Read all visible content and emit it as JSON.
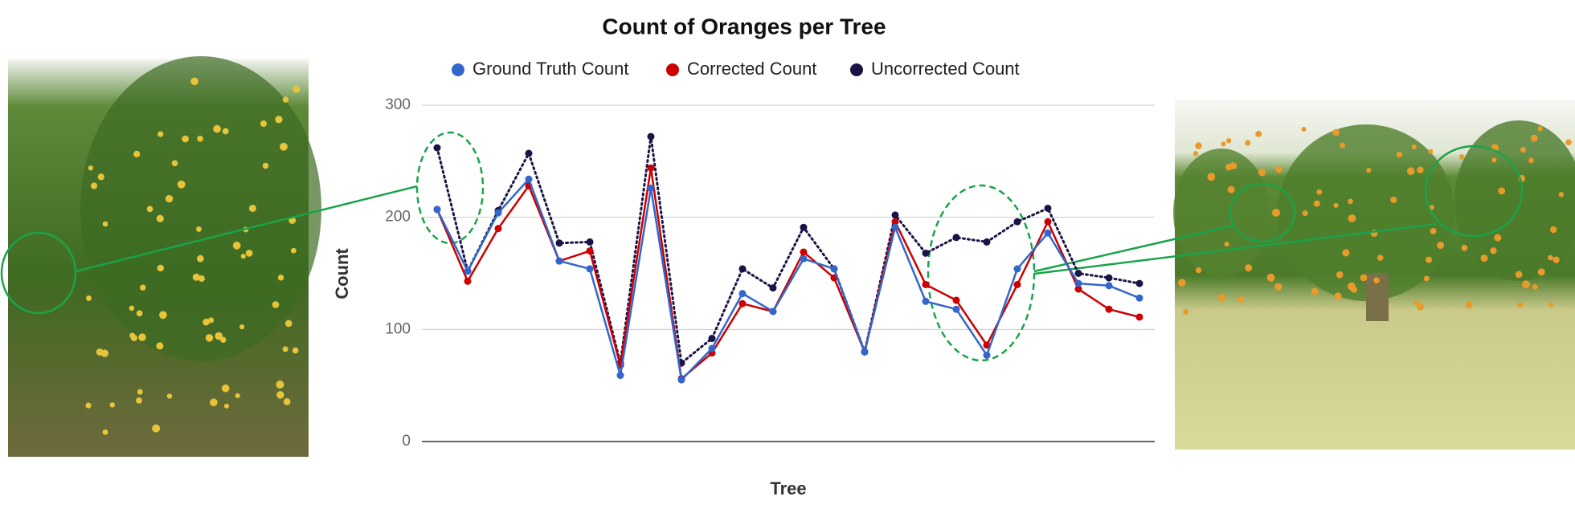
{
  "chart_data": {
    "type": "line",
    "title": "Count of Oranges per Tree",
    "x_label": "Tree",
    "y_label": "Count",
    "categories": [
      null,
      null,
      null,
      null,
      null,
      null,
      null,
      null,
      null,
      null,
      null,
      null,
      null,
      null,
      null,
      null,
      null,
      null,
      null,
      null,
      null,
      null,
      null,
      null
    ],
    "series": [
      {
        "name": "Ground Truth Count",
        "color": "#3366cc",
        "dash": "solid",
        "values": [
          207,
          152,
          204,
          234,
          161,
          154,
          59,
          226,
          55,
          83,
          132,
          116,
          163,
          154,
          80,
          191,
          125,
          118,
          77,
          154,
          186,
          141,
          139,
          128
        ]
      },
      {
        "name": "Corrected Count",
        "color": "#cc0000",
        "dash": "solid",
        "values": [
          207,
          143,
          190,
          228,
          161,
          170,
          68,
          244,
          56,
          79,
          123,
          116,
          169,
          146,
          80,
          196,
          140,
          126,
          86,
          140,
          196,
          136,
          118,
          111
        ]
      },
      {
        "name": "Uncorrected Count",
        "color": "#1a1446",
        "dash": "dotted",
        "values": [
          262,
          152,
          206,
          257,
          177,
          178,
          70,
          272,
          70,
          92,
          154,
          137,
          191,
          154,
          80,
          202,
          168,
          182,
          178,
          196,
          208,
          150,
          146,
          141
        ]
      }
    ],
    "ylim": [
      0,
      300
    ],
    "yticks": [
      0,
      100,
      200,
      300
    ],
    "grid": true,
    "legend": "top"
  }
}
